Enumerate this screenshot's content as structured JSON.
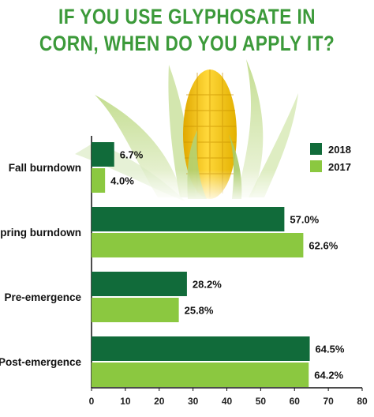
{
  "title_lines": [
    "IF YOU USE GLYPHOSATE IN",
    "CORN, WHEN DO YOU APPLY IT?"
  ],
  "colors": {
    "title": "#3c9a3a",
    "series_2018": "#116b3a",
    "series_2017": "#8bc840"
  },
  "chart_data": {
    "type": "bar",
    "orientation": "horizontal",
    "title": "IF YOU USE GLYPHOSATE IN CORN, WHEN DO YOU APPLY IT?",
    "categories": [
      "Fall burndown",
      "Spring burndown",
      "Pre-emergence",
      "Post-emergence"
    ],
    "series": [
      {
        "name": "2018",
        "values": [
          6.7,
          57.0,
          28.2,
          64.5
        ],
        "labels": [
          "6.7%",
          "57.0%",
          "28.2%",
          "64.5%"
        ],
        "color": "#116b3a"
      },
      {
        "name": "2017",
        "values": [
          4.0,
          62.6,
          25.8,
          64.2
        ],
        "labels": [
          "4.0%",
          "62.6%",
          "25.8%",
          "64.2%"
        ],
        "color": "#8bc840"
      }
    ],
    "xlim": [
      0,
      80
    ],
    "xticks": [
      "0",
      "10",
      "20",
      "30",
      "40",
      "50",
      "60",
      "70",
      "80"
    ],
    "xlabel": "",
    "ylabel": "",
    "legend_position": "top-right",
    "grid": false
  }
}
